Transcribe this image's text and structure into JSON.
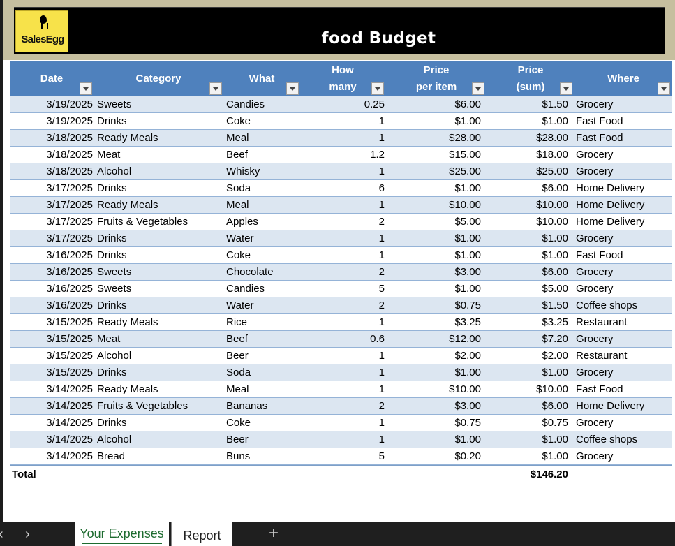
{
  "logo": {
    "text": "SalesEgg",
    "color": "#f7e24a"
  },
  "sheet": {
    "title": "food Budget"
  },
  "columns": {
    "date": "Date",
    "category": "Category",
    "what": "What",
    "how_many_1": "How",
    "how_many_2": "many",
    "price_1": "Price",
    "price_2": "per item",
    "sum_1": "Price",
    "sum_2": "(sum)",
    "where": "Where"
  },
  "rows": [
    {
      "date": "3/19/2025",
      "category": "Sweets",
      "what": "Candies",
      "qty": "0.25",
      "price": "$6.00",
      "sum": "$1.50",
      "where": "Grocery"
    },
    {
      "date": "3/19/2025",
      "category": "Drinks",
      "what": "Coke",
      "qty": "1",
      "price": "$1.00",
      "sum": "$1.00",
      "where": "Fast Food"
    },
    {
      "date": "3/18/2025",
      "category": "Ready Meals",
      "what": "Meal",
      "qty": "1",
      "price": "$28.00",
      "sum": "$28.00",
      "where": "Fast Food"
    },
    {
      "date": "3/18/2025",
      "category": "Meat",
      "what": "Beef",
      "qty": "1.2",
      "price": "$15.00",
      "sum": "$18.00",
      "where": "Grocery"
    },
    {
      "date": "3/18/2025",
      "category": "Alcohol",
      "what": "Whisky",
      "qty": "1",
      "price": "$25.00",
      "sum": "$25.00",
      "where": "Grocery"
    },
    {
      "date": "3/17/2025",
      "category": "Drinks",
      "what": "Soda",
      "qty": "6",
      "price": "$1.00",
      "sum": "$6.00",
      "where": "Home Delivery"
    },
    {
      "date": "3/17/2025",
      "category": "Ready Meals",
      "what": "Meal",
      "qty": "1",
      "price": "$10.00",
      "sum": "$10.00",
      "where": "Home Delivery"
    },
    {
      "date": "3/17/2025",
      "category": "Fruits & Vegetables",
      "what": "Apples",
      "qty": "2",
      "price": "$5.00",
      "sum": "$10.00",
      "where": "Home Delivery"
    },
    {
      "date": "3/17/2025",
      "category": "Drinks",
      "what": "Water",
      "qty": "1",
      "price": "$1.00",
      "sum": "$1.00",
      "where": "Grocery"
    },
    {
      "date": "3/16/2025",
      "category": "Drinks",
      "what": "Coke",
      "qty": "1",
      "price": "$1.00",
      "sum": "$1.00",
      "where": "Fast Food"
    },
    {
      "date": "3/16/2025",
      "category": "Sweets",
      "what": "Chocolate",
      "qty": "2",
      "price": "$3.00",
      "sum": "$6.00",
      "where": "Grocery"
    },
    {
      "date": "3/16/2025",
      "category": "Sweets",
      "what": "Candies",
      "qty": "5",
      "price": "$1.00",
      "sum": "$5.00",
      "where": "Grocery"
    },
    {
      "date": "3/16/2025",
      "category": "Drinks",
      "what": "Water",
      "qty": "2",
      "price": "$0.75",
      "sum": "$1.50",
      "where": "Coffee shops"
    },
    {
      "date": "3/15/2025",
      "category": "Ready Meals",
      "what": "Rice",
      "qty": "1",
      "price": "$3.25",
      "sum": "$3.25",
      "where": "Restaurant"
    },
    {
      "date": "3/15/2025",
      "category": "Meat",
      "what": "Beef",
      "qty": "0.6",
      "price": "$12.00",
      "sum": "$7.20",
      "where": "Grocery"
    },
    {
      "date": "3/15/2025",
      "category": "Alcohol",
      "what": "Beer",
      "qty": "1",
      "price": "$2.00",
      "sum": "$2.00",
      "where": "Restaurant"
    },
    {
      "date": "3/15/2025",
      "category": "Drinks",
      "what": "Soda",
      "qty": "1",
      "price": "$1.00",
      "sum": "$1.00",
      "where": "Grocery"
    },
    {
      "date": "3/14/2025",
      "category": "Ready Meals",
      "what": "Meal",
      "qty": "1",
      "price": "$10.00",
      "sum": "$10.00",
      "where": "Fast Food"
    },
    {
      "date": "3/14/2025",
      "category": "Fruits & Vegetables",
      "what": "Bananas",
      "qty": "2",
      "price": "$3.00",
      "sum": "$6.00",
      "where": "Home Delivery"
    },
    {
      "date": "3/14/2025",
      "category": "Drinks",
      "what": "Coke",
      "qty": "1",
      "price": "$0.75",
      "sum": "$0.75",
      "where": "Grocery"
    },
    {
      "date": "3/14/2025",
      "category": "Alcohol",
      "what": "Beer",
      "qty": "1",
      "price": "$1.00",
      "sum": "$1.00",
      "where": "Coffee shops"
    },
    {
      "date": "3/14/2025",
      "category": "Bread",
      "what": "Buns",
      "qty": "5",
      "price": "$0.20",
      "sum": "$1.00",
      "where": "Grocery"
    }
  ],
  "total": {
    "label": "Total",
    "sum": "$146.20"
  },
  "tabs": {
    "prev_icon": "chevron-left-icon",
    "next_icon": "chevron-right-icon",
    "prev_glyph": "‹",
    "next_glyph": "›",
    "active": "Your Expenses",
    "other": "Report",
    "add_glyph": "+"
  },
  "colors": {
    "header_blue": "#4f81bd",
    "band_blue": "#dce6f1",
    "banner_tan": "#c6bf9f",
    "active_tab_green": "#1d6b2f"
  }
}
